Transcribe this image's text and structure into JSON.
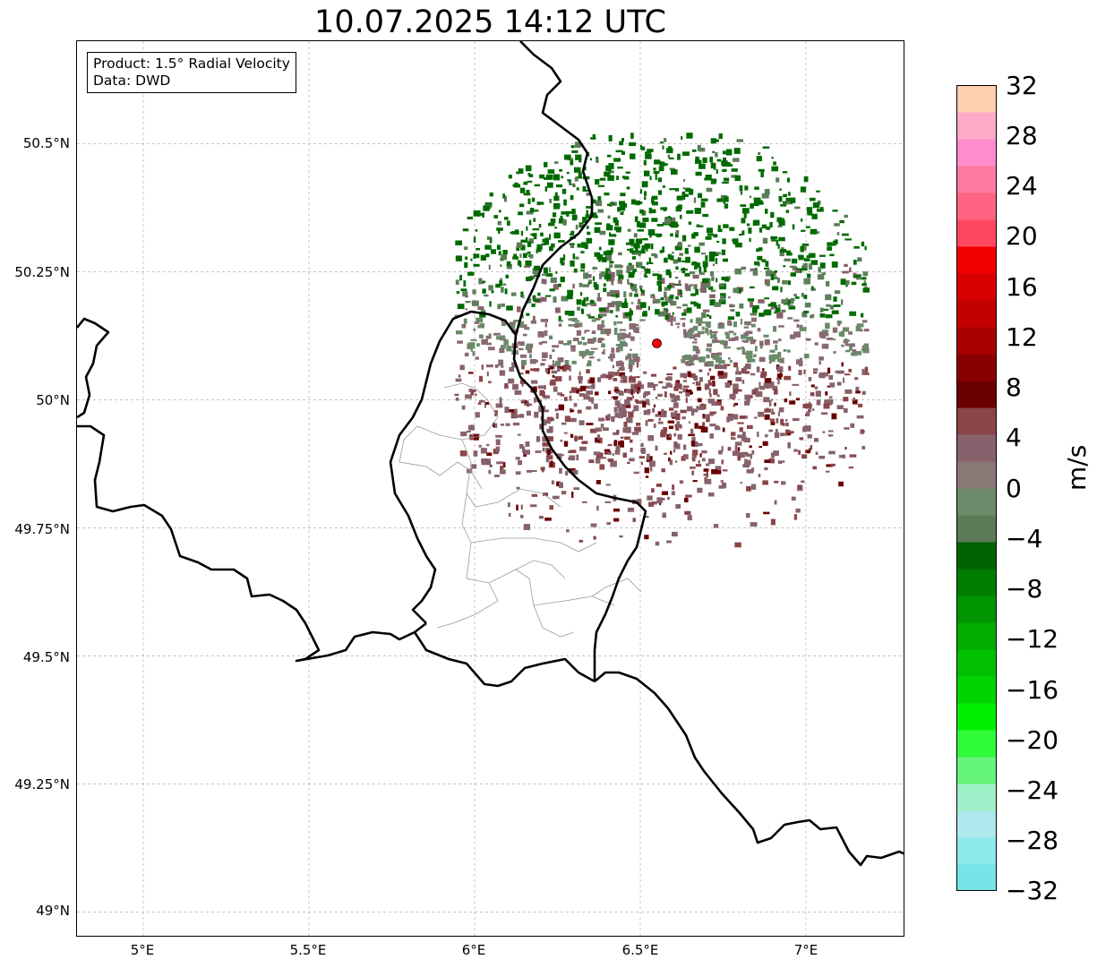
{
  "title": "10.07.2025 14:12 UTC",
  "info": {
    "product": "Product: 1.5° Radial Velocity",
    "source": "Data: DWD"
  },
  "map": {
    "lon_range": [
      4.8,
      7.3
    ],
    "lat_range": [
      48.95,
      50.7
    ],
    "radar_site": {
      "lon": 6.55,
      "lat": 50.11,
      "color": "#ff0000"
    },
    "lon_ticks": [
      "5°E",
      "5.5°E",
      "6°E",
      "6.5°E",
      "7°E"
    ],
    "lat_ticks": [
      "50.5°N",
      "50.25°N",
      "50°N",
      "49.75°N",
      "49.5°N",
      "49.25°N",
      "49°N"
    ],
    "gridlines": true,
    "border_color": "#000000"
  },
  "colorbar": {
    "label": "m/s",
    "min": -32,
    "max": 32,
    "ticks": [
      "32",
      "28",
      "24",
      "20",
      "16",
      "12",
      "8",
      "4",
      "0",
      "−4",
      "−8",
      "−12",
      "−16",
      "−20",
      "−24",
      "−28",
      "−32"
    ],
    "colors": [
      "#76e3e6",
      "#8ce9ec",
      "#aee8ec",
      "#9ef0c8",
      "#64f47a",
      "#30fb3a",
      "#00f000",
      "#00d400",
      "#00c000",
      "#00ac00",
      "#009400",
      "#007c00",
      "#006200",
      "#5b7a56",
      "#6a8a6a",
      "#8a7876",
      "#87626c",
      "#8a4548",
      "#6a0000",
      "#8a0000",
      "#a80000",
      "#c20000",
      "#d60000",
      "#f20000",
      "#ff4860",
      "#ff6482",
      "#ff7aa0",
      "#ff8ccc",
      "#ffaac8",
      "#ffd0b0"
    ]
  }
}
